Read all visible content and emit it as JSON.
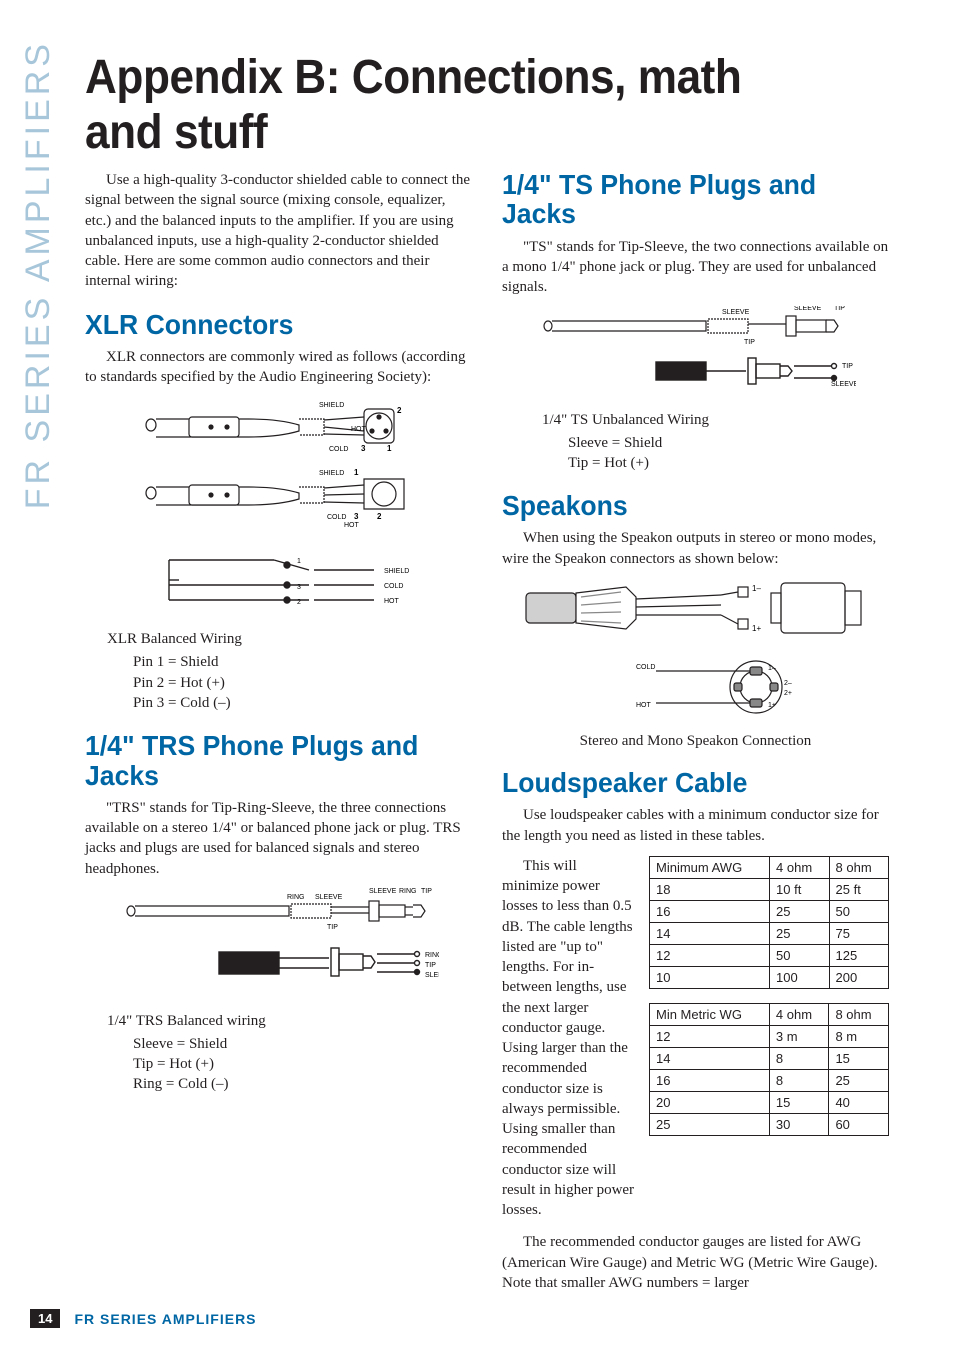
{
  "side_label": "FR SERIES AMPLIFIERS",
  "title": "Appendix B: Connections, math and stuff",
  "intro": "Use a high-quality 3-conductor shielded cable to connect the signal between the signal source (mixing console, equalizer, etc.) and the balanced inputs to the amplifier. If you are using unbalanced inputs, use a high-quality 2-conductor shielded cable. Here are some common audio connectors and their internal wiring:",
  "xlr": {
    "heading": "XLR Connectors",
    "body": "XLR connectors are commonly wired as follows (according to standards specified by the Audio Engineering Society):",
    "caption": "XLR Balanced Wiring",
    "legend": [
      "Pin 1 = Shield",
      "Pin 2 = Hot (+)",
      "Pin 3 = Cold (–)"
    ],
    "labels": {
      "shield": "SHIELD",
      "hot": "HOT",
      "cold": "COLD",
      "p1": "1",
      "p2": "2",
      "p3": "3"
    }
  },
  "trs": {
    "heading": "1/4\" TRS Phone Plugs and Jacks",
    "body": "\"TRS\" stands for Tip-Ring-Sleeve, the three connections available on a stereo 1/4\" or balanced phone jack or plug. TRS jacks and plugs are used for balanced signals and stereo headphones.",
    "caption": "1/4\" TRS Balanced wiring",
    "legend": [
      "Sleeve = Shield",
      "Tip = Hot (+)",
      "Ring = Cold (–)"
    ],
    "labels": {
      "ring": "RING",
      "sleeve": "SLEEVE",
      "tip": "TIP"
    }
  },
  "ts": {
    "heading": "1/4\" TS Phone Plugs and Jacks",
    "body": "\"TS\" stands for Tip-Sleeve, the two connections available on a mono 1/4\" phone jack or plug. They are used for unbalanced signals.",
    "caption": "1/4\" TS Unbalanced Wiring",
    "legend": [
      "Sleeve = Shield",
      "Tip = Hot (+)"
    ],
    "labels": {
      "sleeve": "SLEEVE",
      "tip": "TIP"
    }
  },
  "speakon": {
    "heading": "Speakons",
    "body": "When using the Speakon outputs in stereo or mono modes, wire the Speakon connectors as shown below:",
    "caption": "Stereo and Mono Speakon Connection",
    "labels": {
      "cold": "COLD",
      "hot": "HOT",
      "p1m": "1–",
      "p1p": "1+",
      "p2m": "2–",
      "p2p": "2+"
    }
  },
  "cable": {
    "heading": "Loudspeaker Cable",
    "body": "Use loudspeaker cables with a minimum conductor size for the length you need as listed in these tables.",
    "aside": "This will minimize power losses to less than 0.5 dB. The cable lengths listed are \"up to\" lengths. For in-between lengths, use the next larger conductor gauge. Using larger than the recommended conductor size is always permissible. Using smaller than recommended conductor size will result in higher power losses.",
    "note": "The recommended conductor gauges are listed for AWG (American Wire Gauge) and Metric WG (Metric Wire Gauge). Note that smaller AWG numbers = larger",
    "awg": {
      "columns": [
        "Minimum AWG",
        "4 ohm",
        "8 ohm"
      ],
      "rows": [
        [
          "18",
          "10 ft",
          "25 ft"
        ],
        [
          "16",
          "25",
          "50"
        ],
        [
          "14",
          "25",
          "75"
        ],
        [
          "12",
          "50",
          "125"
        ],
        [
          "10",
          "100",
          "200"
        ]
      ]
    },
    "metric": {
      "columns": [
        "Min Metric WG",
        "4 ohm",
        "8 ohm"
      ],
      "rows": [
        [
          "12",
          "3 m",
          "8 m"
        ],
        [
          "14",
          "8",
          "15"
        ],
        [
          "16",
          "8",
          "25"
        ],
        [
          "20",
          "15",
          "40"
        ],
        [
          "25",
          "30",
          "60"
        ]
      ]
    }
  },
  "footer": {
    "page": "14",
    "title": "FR SERIES AMPLIFIERS"
  },
  "colors": {
    "accent": "#0066a4",
    "side": "#a7c6d9",
    "text": "#231f20",
    "stroke": "#231f20"
  }
}
